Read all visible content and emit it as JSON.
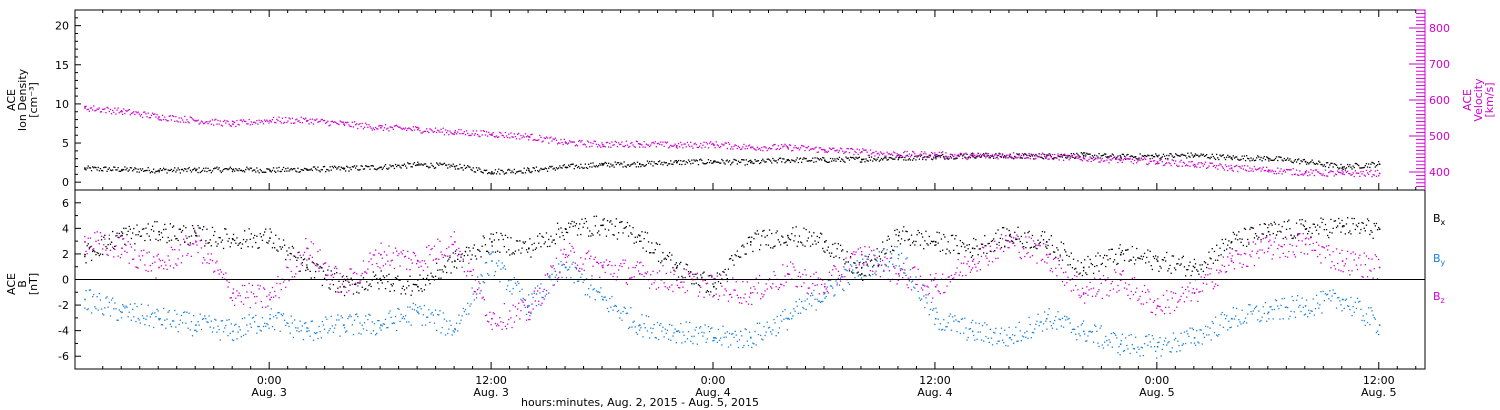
{
  "chart_data": [
    {
      "type": "scatter",
      "panel": "ion-density-velocity",
      "ylabel_left": [
        "ACE",
        "Ion Density",
        "[cm⁻³]"
      ],
      "ylabel_right": [
        "ACE",
        "Velocity",
        "[km/s]"
      ],
      "ylim_left": [
        -1,
        22
      ],
      "yticks_left": [
        0,
        5,
        10,
        15,
        20
      ],
      "ylim_right": [
        350,
        850
      ],
      "yticks_right": [
        400,
        500,
        600,
        700,
        800
      ],
      "colors": {
        "density": "#000000",
        "velocity": "#d000d0"
      },
      "series": [
        {
          "name": "Ion Density",
          "axis": "left",
          "x": [
            -10,
            -8,
            -6,
            -4,
            -2,
            0,
            2,
            4,
            6,
            8,
            10,
            12,
            14,
            16,
            18,
            20,
            22,
            24,
            26,
            28,
            30,
            32,
            34,
            36,
            38,
            40,
            42,
            44,
            46,
            48,
            50,
            52,
            54,
            56,
            58,
            60
          ],
          "y": [
            1.8,
            1.7,
            1.6,
            1.6,
            1.7,
            1.6,
            1.7,
            1.8,
            2.0,
            2.3,
            2.1,
            1.4,
            1.6,
            2.0,
            2.3,
            2.4,
            2.6,
            2.7,
            2.6,
            2.9,
            2.9,
            3.0,
            3.2,
            3.3,
            3.5,
            3.4,
            3.4,
            3.5,
            3.3,
            3.4,
            3.5,
            3.2,
            3.1,
            2.7,
            2.0,
            2.4
          ]
        },
        {
          "name": "Velocity",
          "axis": "right",
          "x": [
            -10,
            -8,
            -6,
            -4,
            -2,
            0,
            2,
            4,
            6,
            8,
            10,
            12,
            14,
            16,
            18,
            20,
            22,
            24,
            26,
            28,
            30,
            32,
            34,
            36,
            38,
            40,
            42,
            44,
            46,
            48,
            50,
            52,
            54,
            56,
            58,
            60
          ],
          "y": [
            580,
            570,
            555,
            545,
            535,
            545,
            545,
            535,
            525,
            520,
            512,
            507,
            500,
            483,
            478,
            480,
            475,
            478,
            470,
            470,
            463,
            458,
            450,
            450,
            445,
            448,
            445,
            440,
            435,
            430,
            423,
            413,
            407,
            400,
            397,
            398
          ]
        }
      ]
    },
    {
      "type": "scatter",
      "panel": "magnetic-field",
      "ylabel": [
        "ACE",
        "B",
        "[nT]"
      ],
      "ylim": [
        -7,
        7
      ],
      "yticks": [
        -6,
        -4,
        -2,
        0,
        2,
        4,
        6
      ],
      "zero_line": true,
      "xlabel": "hours:minutes, Aug.  2, 2015 - Aug.  5, 2015",
      "xlim": [
        -10.5,
        62.5
      ],
      "xticks": [
        {
          "x": 0,
          "line1": "0:00",
          "line2": "Aug. 3"
        },
        {
          "x": 12,
          "line1": "12:00",
          "line2": "Aug. 3"
        },
        {
          "x": 24,
          "line1": "0:00",
          "line2": "Aug. 4"
        },
        {
          "x": 36,
          "line1": "12:00",
          "line2": "Aug. 4"
        },
        {
          "x": 48,
          "line1": "0:00",
          "line2": "Aug. 5"
        },
        {
          "x": 60,
          "line1": "12:00",
          "line2": "Aug. 5"
        }
      ],
      "colors": {
        "Bx": "#000000",
        "By": "#1a80d8",
        "Bz": "#d000d0"
      },
      "series": [
        {
          "name": "Bx",
          "x": [
            -10,
            -8,
            -6,
            -4,
            -2,
            0,
            2,
            4,
            6,
            8,
            10,
            12,
            14,
            16,
            18,
            20,
            22,
            24,
            26,
            28,
            30,
            32,
            34,
            36,
            38,
            40,
            42,
            44,
            46,
            48,
            50,
            52,
            54,
            56,
            58,
            60
          ],
          "y": [
            2.0,
            3.5,
            3.8,
            3.5,
            3.2,
            3.3,
            1.0,
            -0.5,
            0.0,
            -0.5,
            1.5,
            3.0,
            2.5,
            4.0,
            4.3,
            3.5,
            1.0,
            -0.5,
            3.0,
            3.5,
            3.0,
            0.5,
            3.5,
            3.0,
            2.5,
            3.5,
            3.0,
            1.0,
            2.0,
            1.5,
            1.0,
            3.0,
            3.8,
            4.0,
            4.2,
            4.0
          ]
        },
        {
          "name": "By",
          "x": [
            -10,
            -8,
            -6,
            -4,
            -2,
            0,
            2,
            4,
            6,
            8,
            10,
            12,
            14,
            16,
            18,
            20,
            22,
            24,
            26,
            28,
            30,
            32,
            34,
            36,
            38,
            40,
            42,
            44,
            46,
            48,
            50,
            52,
            54,
            56,
            58,
            60
          ],
          "y": [
            -1.5,
            -2.5,
            -3.0,
            -3.5,
            -4.0,
            -3.0,
            -4.0,
            -3.5,
            -3.5,
            -2.5,
            -3.8,
            1.5,
            -2.0,
            1.0,
            -1.5,
            -3.5,
            -4.0,
            -4.5,
            -4.5,
            -3.0,
            -1.0,
            1.0,
            2.0,
            -3.0,
            -4.0,
            -4.5,
            -3.0,
            -4.0,
            -5.0,
            -5.2,
            -4.5,
            -3.0,
            -2.5,
            -2.0,
            -1.5,
            -3.5
          ]
        },
        {
          "name": "Bz",
          "x": [
            -10,
            -8,
            -6,
            -4,
            -2,
            0,
            2,
            4,
            6,
            8,
            10,
            12,
            14,
            16,
            18,
            20,
            22,
            24,
            26,
            28,
            30,
            32,
            34,
            36,
            38,
            40,
            42,
            44,
            46,
            48,
            50,
            52,
            54,
            56,
            58,
            60
          ],
          "y": [
            3.0,
            2.5,
            1.0,
            3.0,
            -1.0,
            -1.5,
            2.5,
            -0.5,
            2.0,
            1.5,
            3.0,
            -3.0,
            -2.5,
            2.0,
            1.0,
            0.5,
            0.0,
            -0.5,
            -1.0,
            0.5,
            -0.5,
            2.0,
            0.5,
            -0.5,
            1.5,
            3.0,
            2.0,
            -1.0,
            0.0,
            -2.0,
            -1.0,
            1.5,
            2.5,
            2.8,
            1.5,
            1.0
          ]
        }
      ]
    }
  ],
  "legend": [
    {
      "main": "B",
      "sub": "x",
      "color": "#000000"
    },
    {
      "main": "B",
      "sub": "y",
      "color": "#1a80d8"
    },
    {
      "main": "B",
      "sub": "z",
      "color": "#d000d0"
    }
  ]
}
